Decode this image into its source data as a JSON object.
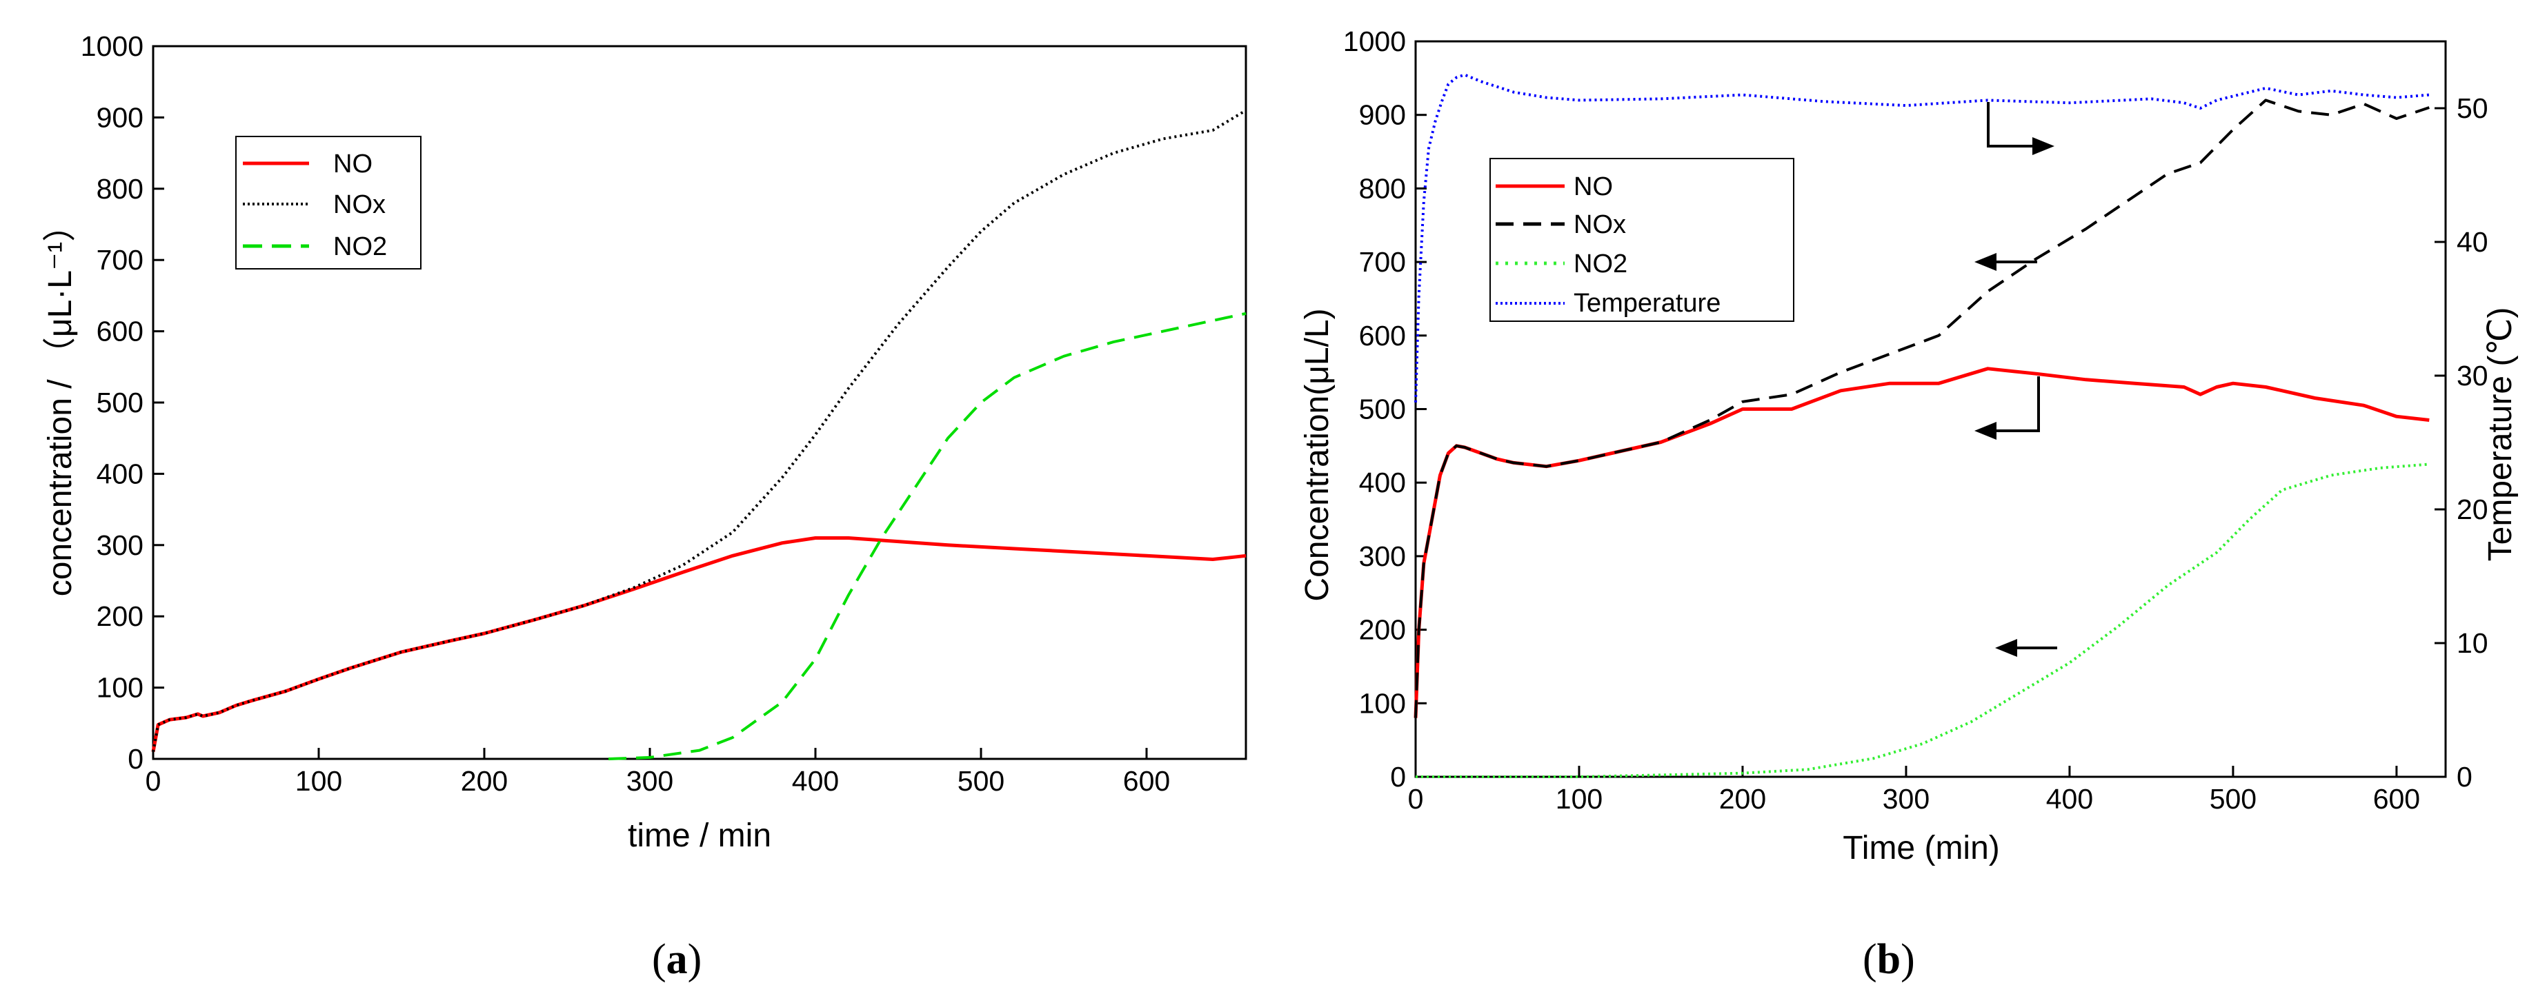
{
  "chart_data": [
    {
      "type": "line",
      "panel": "a",
      "caption_letter": "a",
      "xlabel": "time / min",
      "ylabel": "concentration / （μL·L⁻¹）",
      "xlim": [
        0,
        660
      ],
      "ylim": [
        0,
        1000
      ],
      "xticks": [
        0,
        100,
        200,
        300,
        400,
        500,
        600
      ],
      "yticks": [
        0,
        100,
        200,
        300,
        400,
        500,
        600,
        700,
        800,
        900,
        1000
      ],
      "legend_position": "upper-left",
      "series": [
        {
          "name": "NO",
          "color": "#ff0000",
          "style": "solid",
          "x": [
            0,
            3,
            10,
            20,
            27,
            30,
            40,
            50,
            60,
            80,
            100,
            120,
            150,
            180,
            200,
            230,
            260,
            290,
            320,
            350,
            380,
            400,
            420,
            450,
            480,
            520,
            560,
            600,
            640,
            660
          ],
          "y": [
            10,
            48,
            55,
            58,
            63,
            60,
            65,
            75,
            82,
            95,
            112,
            128,
            150,
            166,
            176,
            195,
            215,
            238,
            262,
            285,
            303,
            310,
            310,
            305,
            300,
            295,
            290,
            285,
            280,
            285
          ]
        },
        {
          "name": "NOx",
          "color": "#000000",
          "style": "dotted",
          "x": [
            0,
            3,
            10,
            20,
            27,
            30,
            40,
            50,
            60,
            80,
            100,
            120,
            150,
            180,
            200,
            230,
            260,
            290,
            320,
            350,
            380,
            400,
            420,
            450,
            480,
            500,
            520,
            550,
            580,
            610,
            640,
            660
          ],
          "y": [
            10,
            48,
            55,
            58,
            63,
            60,
            65,
            75,
            82,
            95,
            112,
            128,
            150,
            166,
            176,
            195,
            215,
            240,
            272,
            318,
            395,
            455,
            520,
            610,
            690,
            740,
            780,
            820,
            850,
            870,
            882,
            910
          ]
        },
        {
          "name": "NO2",
          "color": "#00dd00",
          "style": "dashed",
          "x": [
            275,
            300,
            330,
            350,
            380,
            400,
            420,
            440,
            460,
            480,
            500,
            520,
            550,
            580,
            610,
            640,
            660
          ],
          "y": [
            0,
            2,
            12,
            30,
            80,
            140,
            230,
            310,
            380,
            450,
            500,
            535,
            565,
            585,
            600,
            615,
            625
          ]
        }
      ]
    },
    {
      "type": "line",
      "panel": "b",
      "caption_letter": "b",
      "xlabel": "Time (min)",
      "ylabel": "Concentration(μL/L)",
      "y2label": "Temperature (℃)",
      "xlim": [
        0,
        630
      ],
      "ylim": [
        0,
        1000
      ],
      "y2lim": [
        0,
        55
      ],
      "xticks": [
        0,
        100,
        200,
        300,
        400,
        500,
        600
      ],
      "yticks": [
        0,
        100,
        200,
        300,
        400,
        500,
        600,
        700,
        800,
        900,
        1000
      ],
      "y2ticks": [
        0,
        10,
        20,
        30,
        40,
        50
      ],
      "legend_position": "upper-left",
      "series": [
        {
          "name": "NO",
          "color": "#ff0000",
          "style": "solid",
          "axis": "left",
          "x": [
            0,
            2,
            5,
            10,
            15,
            20,
            25,
            30,
            40,
            50,
            60,
            80,
            100,
            120,
            150,
            180,
            200,
            230,
            260,
            290,
            320,
            350,
            380,
            410,
            440,
            470,
            480,
            490,
            500,
            520,
            550,
            580,
            600,
            620
          ],
          "y": [
            80,
            200,
            290,
            350,
            410,
            440,
            450,
            448,
            440,
            432,
            427,
            422,
            430,
            440,
            455,
            480,
            500,
            500,
            525,
            535,
            535,
            555,
            548,
            540,
            535,
            530,
            520,
            530,
            535,
            530,
            515,
            505,
            490,
            485
          ]
        },
        {
          "name": "NOx",
          "color": "#000000",
          "style": "dashed",
          "axis": "left",
          "x": [
            0,
            2,
            5,
            10,
            15,
            20,
            25,
            30,
            40,
            50,
            60,
            80,
            100,
            120,
            150,
            180,
            200,
            230,
            260,
            290,
            320,
            350,
            380,
            410,
            440,
            460,
            480,
            500,
            520,
            540,
            560,
            580,
            600,
            620
          ],
          "y": [
            80,
            200,
            290,
            350,
            410,
            440,
            450,
            448,
            440,
            432,
            427,
            422,
            430,
            440,
            455,
            485,
            510,
            520,
            550,
            575,
            600,
            660,
            705,
            745,
            790,
            820,
            835,
            880,
            920,
            905,
            900,
            915,
            895,
            910
          ]
        },
        {
          "name": "NO2",
          "color": "#33ee33",
          "style": "dotted",
          "axis": "left",
          "x": [
            0,
            100,
            200,
            240,
            280,
            310,
            340,
            370,
            400,
            430,
            460,
            490,
            510,
            530,
            560,
            590,
            620
          ],
          "y": [
            0,
            0,
            5,
            10,
            25,
            45,
            75,
            115,
            155,
            205,
            260,
            305,
            350,
            390,
            410,
            420,
            425
          ]
        },
        {
          "name": "Temperature",
          "color": "#0000ff",
          "style": "dotted",
          "axis": "right",
          "x": [
            0,
            2,
            5,
            8,
            12,
            16,
            20,
            25,
            30,
            40,
            60,
            80,
            100,
            150,
            200,
            250,
            300,
            350,
            400,
            450,
            470,
            480,
            490,
            510,
            520,
            540,
            560,
            580,
            600,
            620
          ],
          "y": [
            28,
            36,
            43,
            47,
            49,
            50.5,
            51.8,
            52.3,
            52.5,
            52.0,
            51.2,
            50.8,
            50.6,
            50.7,
            51.0,
            50.5,
            50.2,
            50.6,
            50.4,
            50.7,
            50.4,
            50.0,
            50.6,
            51.2,
            51.5,
            51.0,
            51.3,
            51.0,
            50.8,
            51.0
          ]
        }
      ]
    }
  ]
}
